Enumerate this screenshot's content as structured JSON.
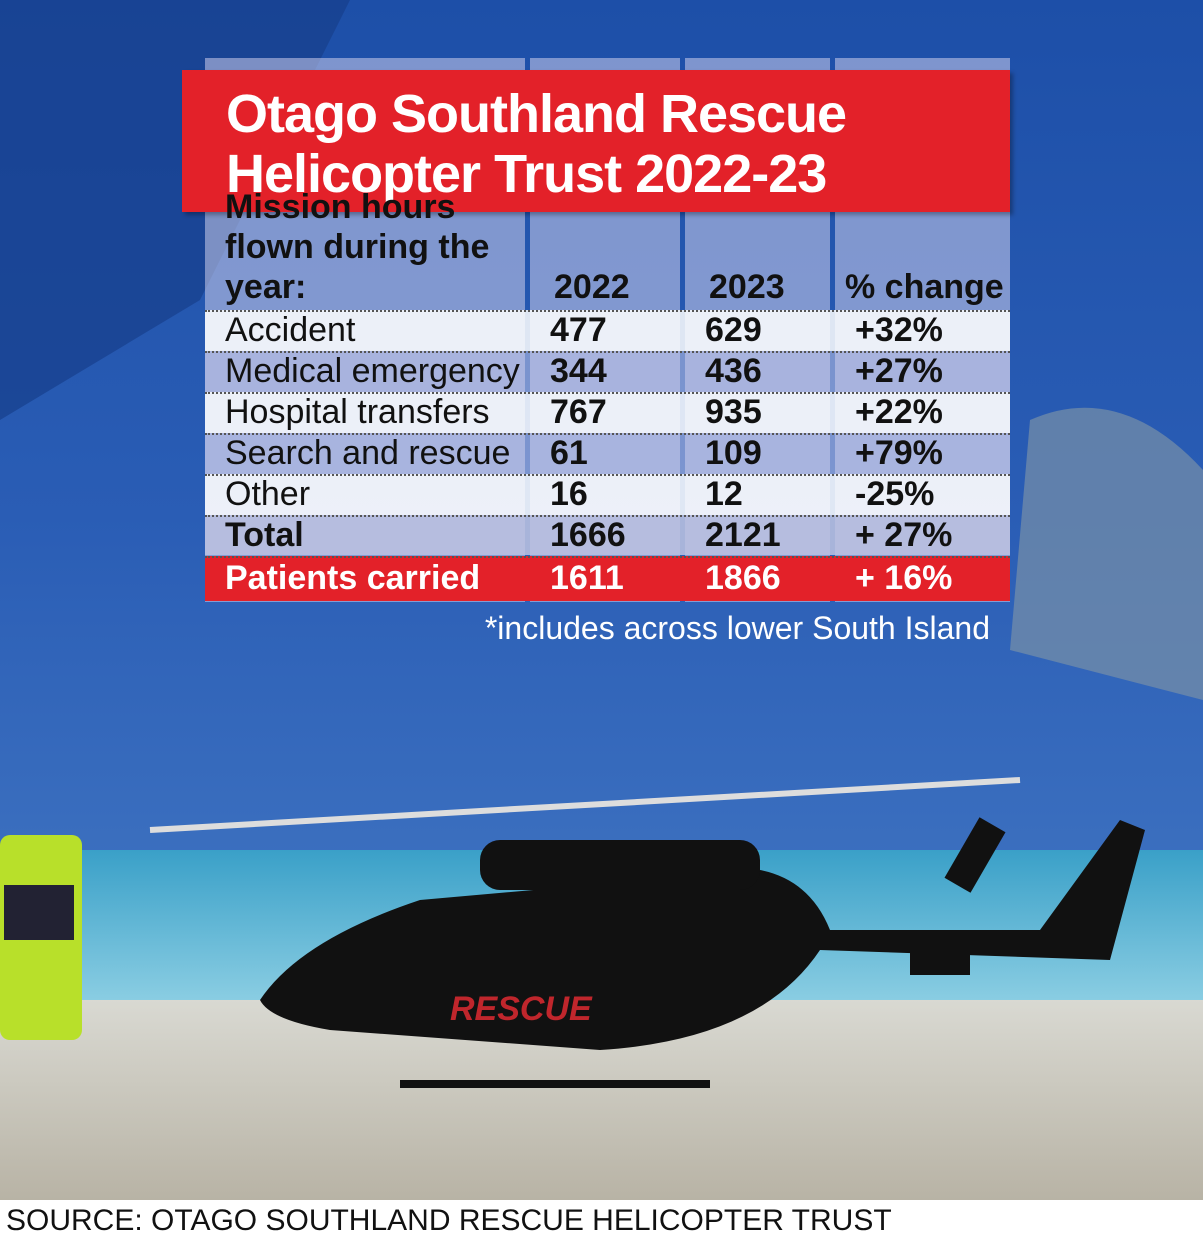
{
  "title": "Otago Southland Rescue Helicopter Trust 2022-23",
  "table": {
    "header": [
      "Mission hours flown during the year:",
      "2022",
      "2023",
      "% change"
    ],
    "rows": [
      [
        "Accident",
        "477",
        "629",
        "+32%"
      ],
      [
        "Medical emergency",
        "344",
        "436",
        "+27%"
      ],
      [
        "Hospital transfers",
        "767",
        "935",
        "+22%"
      ],
      [
        "Search and rescue",
        "61",
        "109",
        "+79%"
      ],
      [
        "Other",
        "16",
        "12",
        "-25%"
      ]
    ],
    "total": [
      "Total",
      "1666",
      "2121",
      "+ 27%"
    ],
    "patients": [
      "Patients carried",
      "1611",
      "1866",
      "+ 16%"
    ]
  },
  "footnote": "*includes across lower South Island",
  "source": "SOURCE: OTAGO SOUTHLAND RESCUE HELICOPTER TRUST"
}
